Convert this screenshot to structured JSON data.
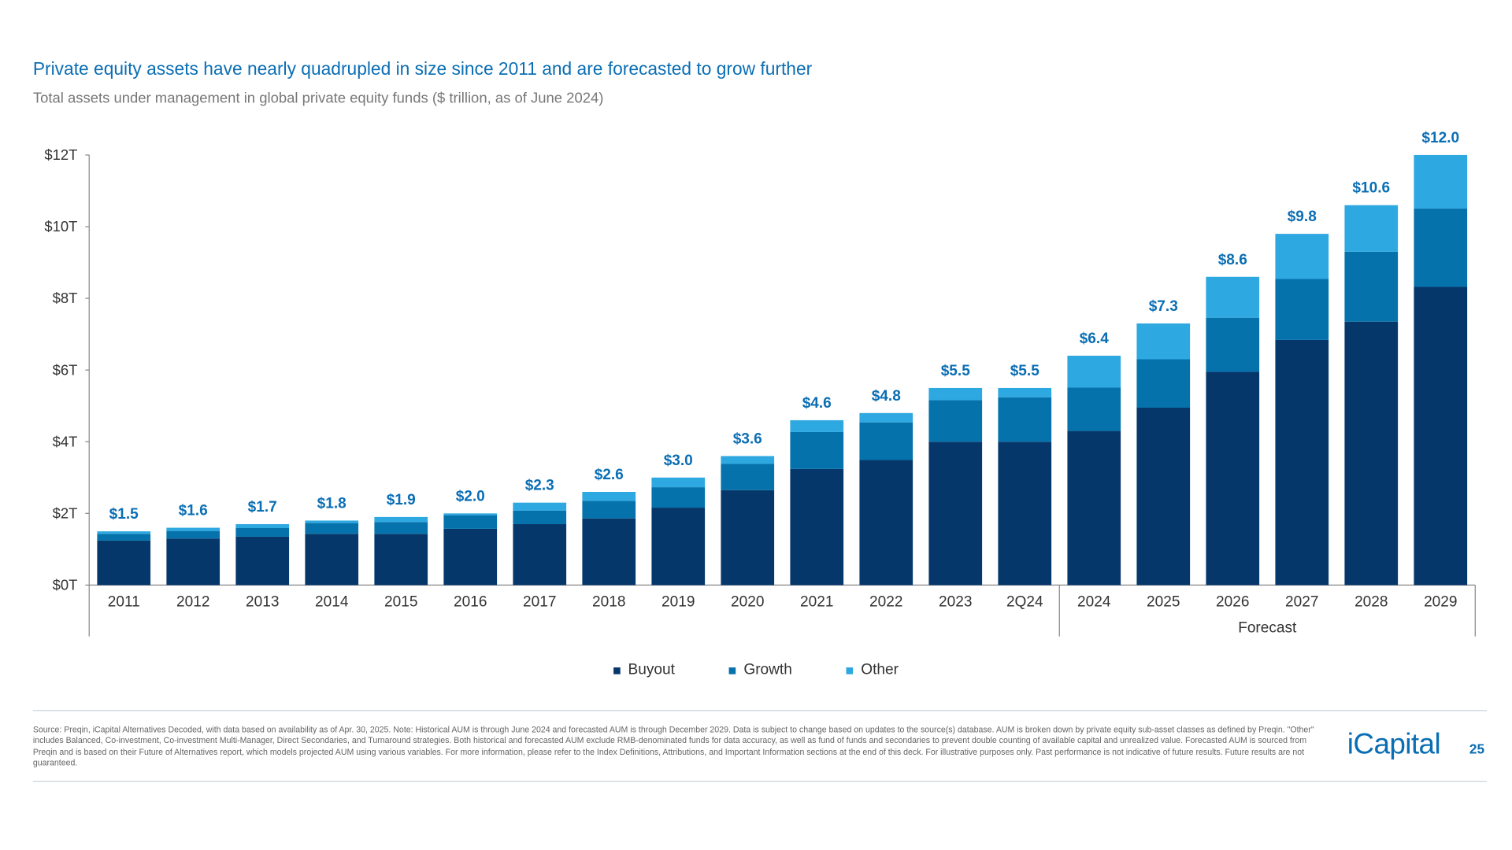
{
  "title": "Private equity assets have nearly quadrupled in size since 2011 and are forecasted to grow further",
  "subtitle": "Total assets under management in global private equity funds ($ trillion, as of June 2024)",
  "chart_data": {
    "type": "bar",
    "stacked": true,
    "categories": [
      "2011",
      "2012",
      "2013",
      "2014",
      "2015",
      "2016",
      "2017",
      "2018",
      "2019",
      "2020",
      "2021",
      "2022",
      "2023",
      "2Q24",
      "2024",
      "2025",
      "2026",
      "2027",
      "2028",
      "2029"
    ],
    "series": [
      {
        "name": "Buyout",
        "color": "#06376b",
        "values": [
          1.24,
          1.3,
          1.35,
          1.43,
          1.43,
          1.57,
          1.7,
          1.86,
          2.16,
          2.65,
          3.24,
          3.49,
          4.0,
          4.0,
          4.3,
          4.95,
          5.95,
          6.84,
          7.35,
          8.32
        ]
      },
      {
        "name": "Growth",
        "color": "#0572ab",
        "values": [
          0.19,
          0.21,
          0.24,
          0.3,
          0.33,
          0.38,
          0.38,
          0.49,
          0.57,
          0.73,
          1.03,
          1.05,
          1.16,
          1.24,
          1.21,
          1.35,
          1.51,
          1.7,
          1.95,
          2.19
        ]
      },
      {
        "name": "Other",
        "color": "#2ea8e0",
        "values": [
          0.07,
          0.09,
          0.11,
          0.07,
          0.14,
          0.05,
          0.22,
          0.25,
          0.27,
          0.22,
          0.33,
          0.26,
          0.34,
          0.26,
          0.89,
          1.0,
          1.14,
          1.26,
          1.3,
          1.49
        ]
      }
    ],
    "totals": [
      "$1.5",
      "$1.6",
      "$1.7",
      "$1.8",
      "$1.9",
      "$2.0",
      "$2.3",
      "$2.6",
      "$3.0",
      "$3.6",
      "$4.6",
      "$4.8",
      "$5.5",
      "$5.5",
      "$6.4",
      "$7.3",
      "$8.6",
      "$9.8",
      "$10.6",
      "$12.0"
    ],
    "yticks": [
      "$0T",
      "$2T",
      "$4T",
      "$6T",
      "$8T",
      "$10T",
      "$12T"
    ],
    "ylim": [
      0,
      12
    ],
    "forecast_label": "Forecast",
    "forecast_start": "2024",
    "legend_position": "bottom",
    "grid": false
  },
  "footnote": "Source: Preqin, iCapital Alternatives Decoded, with data based on availability as of Apr. 30, 2025. Note: Historical AUM is through June 2024 and forecasted AUM is through December 2029. Data is subject to change based on updates to the source(s) database. AUM is broken down by private equity sub-asset classes as defined by Preqin. \"Other\" includes Balanced, Co-investment, Co-investment Multi-Manager, Direct Secondaries, and Turnaround strategies. Both historical and forecasted AUM exclude RMB-denominated funds for data accuracy, as well as fund of funds and secondaries to prevent double counting of available capital and unrealized value. Forecasted AUM is sourced from Preqin and is based on their Future of Alternatives report, which models projected AUM using various variables. For more information, please refer to the Index Definitions, Attributions, and Important Information sections at the end of this deck. For illustrative purposes only. Past performance is not indicative of future results. Future results are not guaranteed.",
  "logo": "iCapital",
  "page_number": "25"
}
